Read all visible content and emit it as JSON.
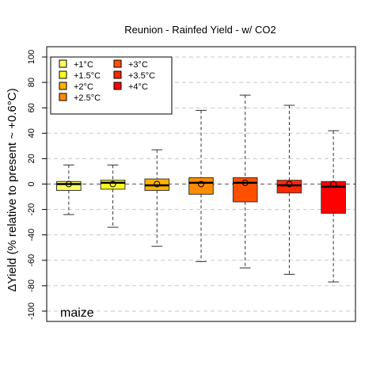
{
  "chart_data": {
    "type": "box",
    "title": "Reunion - Rainfed Yield - w/ CO2",
    "ylabel": "ΔYield (% relative to present ~ +0.6°C)",
    "xlabel": "",
    "ylim": [
      -100,
      100
    ],
    "yticks": [
      -100,
      -80,
      -60,
      -40,
      -20,
      0,
      20,
      40,
      60,
      80,
      100
    ],
    "grid": "horizontal-dashed",
    "legend_position": "top-left",
    "annotation": "maize",
    "categories": [
      "+1°C",
      "+1.5°C",
      "+2°C",
      "+2.5°C",
      "+3°C",
      "+3.5°C",
      "+4°C"
    ],
    "colors": [
      "#FFFF60",
      "#FFFF20",
      "#FFB300",
      "#FF8C00",
      "#FF5000",
      "#FF2800",
      "#FF0000"
    ],
    "boxes": [
      {
        "min": -24,
        "q1": -5,
        "median": 0,
        "q3": 2,
        "max": 15,
        "mean": 0
      },
      {
        "min": -34,
        "q1": -4,
        "median": 1,
        "q3": 3,
        "max": 15,
        "mean": 0
      },
      {
        "min": -49,
        "q1": -5,
        "median": -1,
        "q3": 4,
        "max": 27,
        "mean": 0
      },
      {
        "min": -61,
        "q1": -8,
        "median": 1,
        "q3": 5,
        "max": 58,
        "mean": 0
      },
      {
        "min": -66,
        "q1": -14,
        "median": 1,
        "q3": 5,
        "max": 70,
        "mean": 1
      },
      {
        "min": -71,
        "q1": -7,
        "median": -1,
        "q3": 3,
        "max": 62,
        "mean": 0
      },
      {
        "min": -77,
        "q1": -23,
        "median": -2,
        "q3": 2,
        "max": 42,
        "mean": 0
      }
    ]
  }
}
